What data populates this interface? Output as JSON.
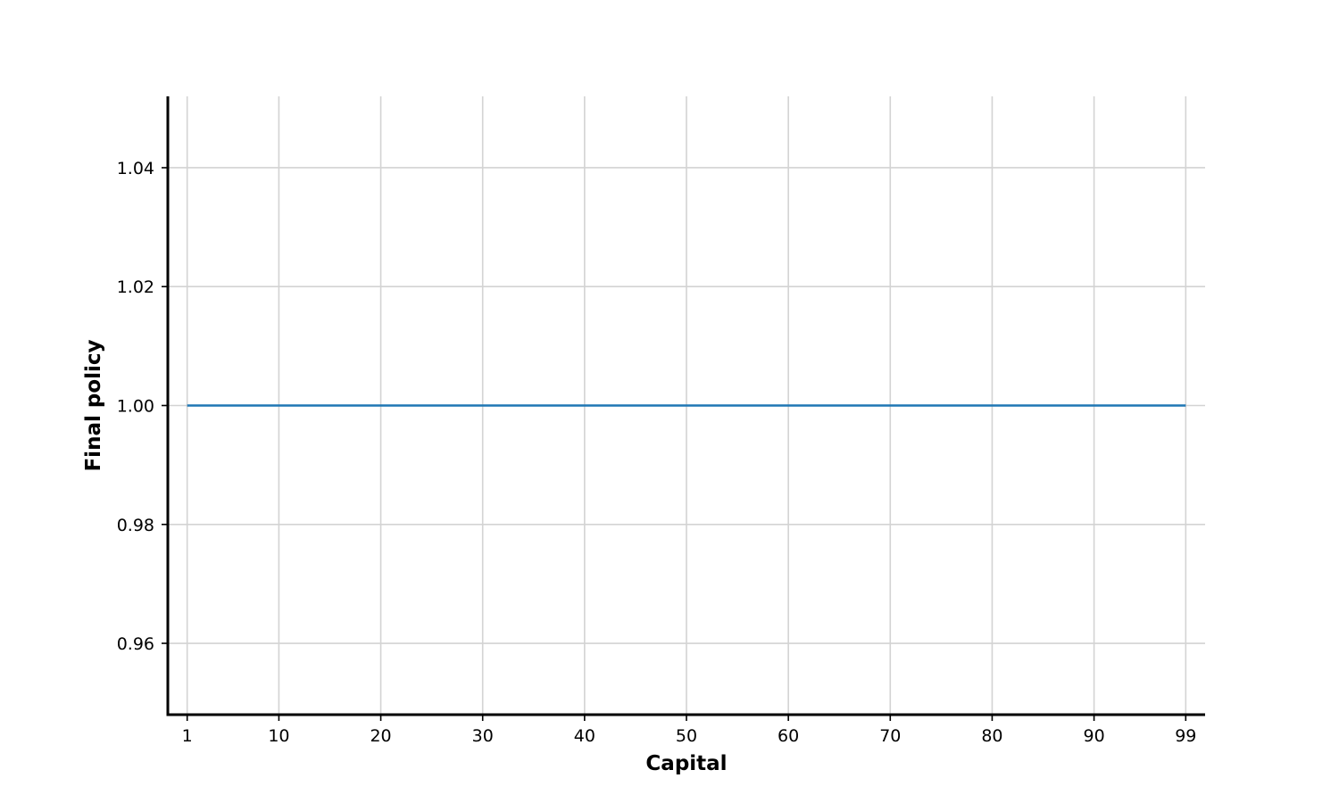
{
  "chart_data": {
    "type": "line",
    "title": "",
    "xlabel": "Capital",
    "ylabel": "Final policy",
    "x_ticks": [
      1,
      10,
      20,
      30,
      40,
      50,
      60,
      70,
      80,
      90,
      99
    ],
    "y_ticks": [
      0.96,
      0.98,
      1.0,
      1.02,
      1.04
    ],
    "y_tick_labels": [
      "0.96",
      "0.98",
      "1.00",
      "1.02",
      "1.04"
    ],
    "xlim": [
      -0.9,
      100.9
    ],
    "ylim": [
      0.948,
      1.052
    ],
    "grid": true,
    "series": [
      {
        "color": "#1f77b4",
        "x": [
          1,
          99
        ],
        "y": [
          1.0,
          1.0
        ]
      }
    ]
  }
}
